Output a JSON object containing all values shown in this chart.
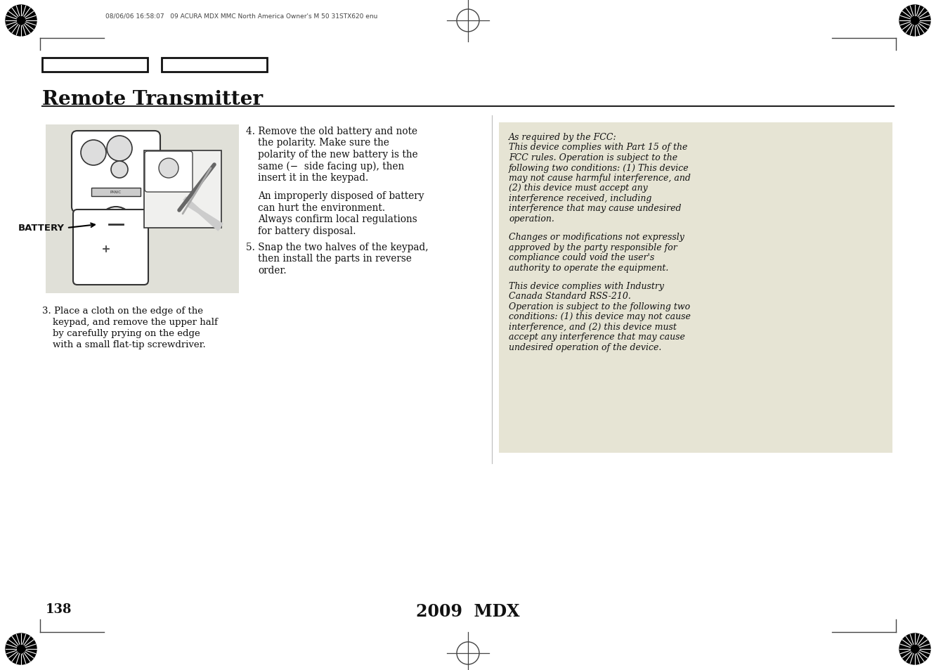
{
  "bg_color": "#ffffff",
  "title": "Remote Transmitter",
  "page_number": "138",
  "footer_text": "2009  MDX",
  "header_text": "08/06/06 16:58:07   09 ACURA MDX MMC North America Owner's M 50 31STX620 enu",
  "step3_lines": [
    "3. Place a cloth on the edge of the",
    "keypad, and remove the upper half",
    "by carefully prying on the edge",
    "with a small flat-tip screwdriver."
  ],
  "step4_lines": [
    "4. Remove the old battery and note",
    "the polarity. Make sure the",
    "polarity of the new battery is the",
    "same (−  side facing up), then",
    "insert it in the keypad.",
    "",
    "An improperly disposed of battery",
    "can hurt the environment.",
    "Always confirm local regulations",
    "for battery disposal."
  ],
  "step5_lines": [
    "5. Snap the two halves of the keypad,",
    "then install the parts in reverse",
    "order."
  ],
  "fcc_paragraphs": [
    [
      "As required by the FCC:",
      "This device complies with Part 15 of the",
      "FCC rules. Operation is subject to the",
      "following two conditions: (1) This device",
      "may not cause harmful interference, and",
      "(2) this device must accept any",
      "interference received, including",
      "interference that may cause undesired",
      "operation."
    ],
    [
      "Changes or modifications not expressly",
      "approved by the party responsible for",
      "compliance could void the user's",
      "authority to operate the equipment."
    ],
    [
      "This device complies with Industry",
      "Canada Standard RSS-210.",
      "Operation is subject to the following two",
      "conditions: (1) this device may not cause",
      "interference, and (2) this device must",
      "accept any interference that may cause",
      "undesired operation of the device."
    ]
  ],
  "battery_label": "BATTERY",
  "image_bg": "#e0e0d8",
  "fcc_bg": "#e6e4d4",
  "separator_color": "#222222",
  "tab_rect_color": "#111111"
}
